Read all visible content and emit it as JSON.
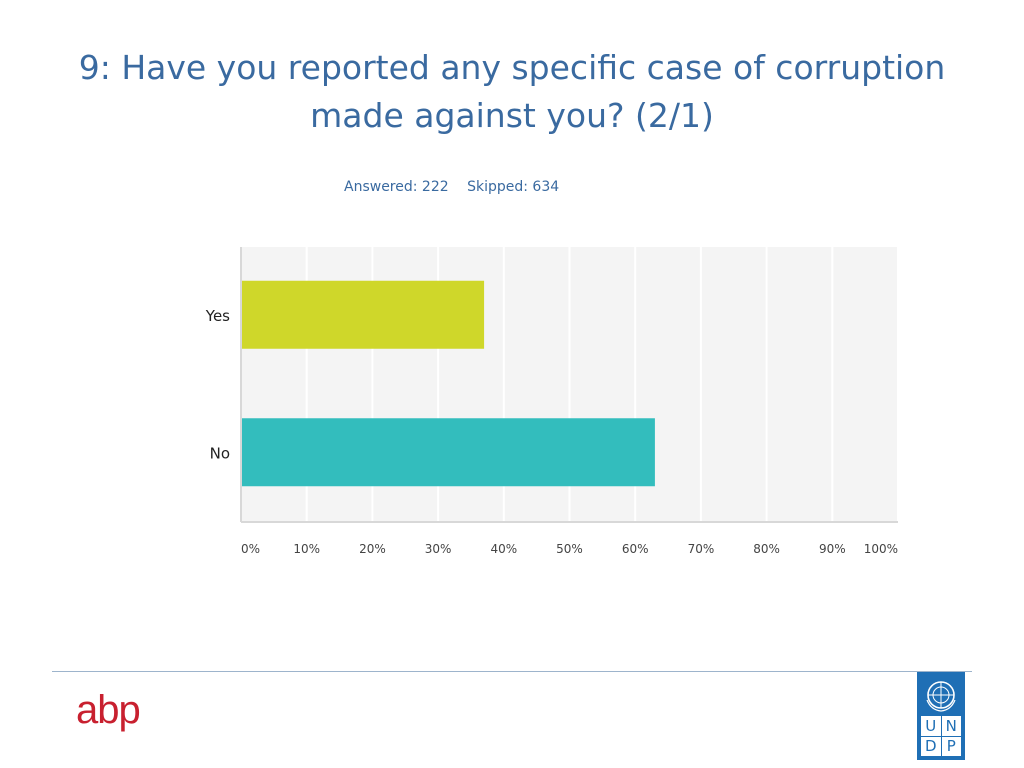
{
  "title": "9: Have you reported any specific case of corruption made against you? (2/1)",
  "stats": {
    "answered": "Answered: 222",
    "skipped": "Skipped: 634"
  },
  "chart_data": {
    "type": "bar",
    "orientation": "horizontal",
    "categories": [
      "Yes",
      "No"
    ],
    "values": [
      37,
      63
    ],
    "colors": [
      "#cfd72a",
      "#33bdbd"
    ],
    "xlim": [
      0,
      100
    ],
    "xticks": [
      "0%",
      "10%",
      "20%",
      "30%",
      "40%",
      "50%",
      "60%",
      "70%",
      "80%",
      "90%",
      "100%"
    ],
    "grid": true,
    "title": "",
    "xlabel": "",
    "ylabel": ""
  },
  "footer": {
    "left_logo": "abp",
    "right_logo_letters": [
      "U",
      "N",
      "D",
      "P"
    ]
  }
}
